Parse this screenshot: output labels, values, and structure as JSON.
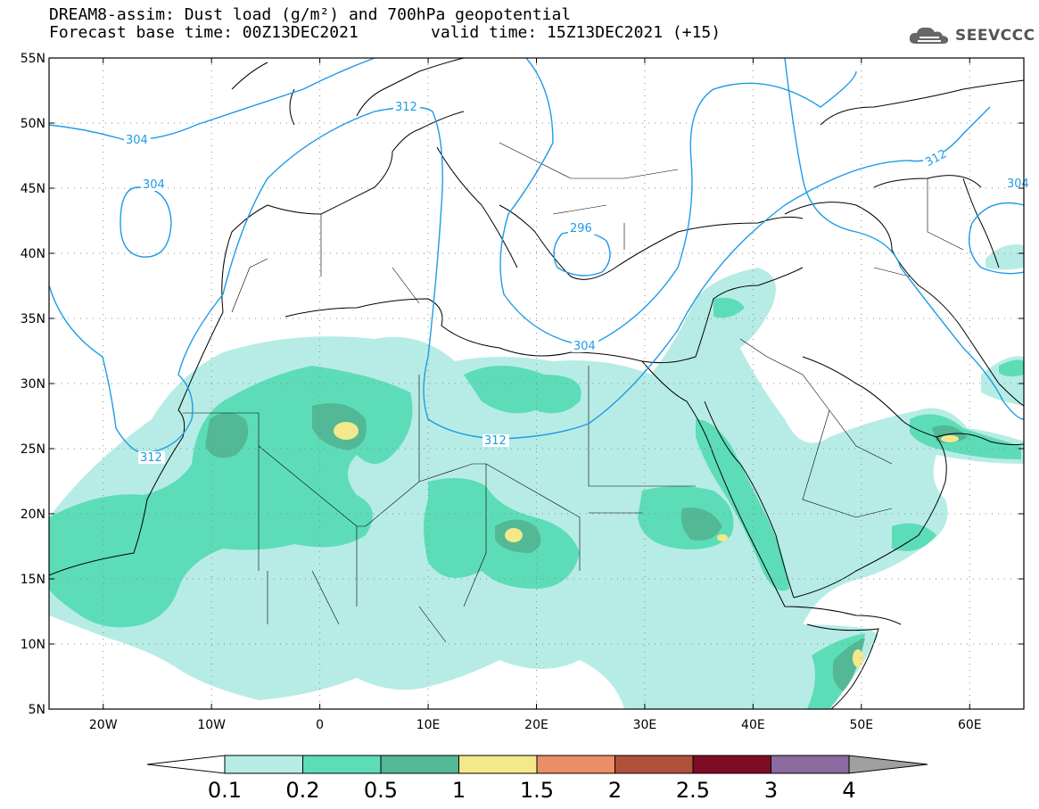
{
  "title": {
    "line1": "DREAM8-assim: Dust load (g/m²) and 700hPa geopotential",
    "line2": "Forecast base time: 00Z13DEC2021",
    "valid": "valid time: 15Z13DEC2021 (+15)"
  },
  "logo": {
    "text": "SEEVCCC",
    "icon": "cloud-icon"
  },
  "axes": {
    "lat_labels": [
      "55N",
      "50N",
      "45N",
      "40N",
      "35N",
      "30N",
      "25N",
      "20N",
      "15N",
      "10N",
      "5N"
    ],
    "lon_labels": [
      "20W",
      "10W",
      "0",
      "10E",
      "20E",
      "30E",
      "40E",
      "50E",
      "60E"
    ],
    "lon_range": [
      -25,
      65
    ],
    "lat_range": [
      5,
      55
    ],
    "grid": "dotted"
  },
  "contours": {
    "labels": [
      "304",
      "312",
      "304",
      "312",
      "296",
      "304",
      "312",
      "312",
      "304",
      "312"
    ]
  },
  "colorbar": {
    "colors": [
      "#b7ece6",
      "#5ddcb8",
      "#52b895",
      "#f4e98a",
      "#e98e66",
      "#b0513c",
      "#7d0c25",
      "#8b6aa0"
    ],
    "labels": [
      "0.1",
      "0.2",
      "0.5",
      "1",
      "1.5",
      "2",
      "2.5",
      "3",
      "4"
    ]
  }
}
